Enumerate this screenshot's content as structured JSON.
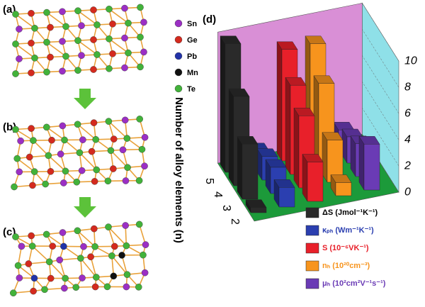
{
  "panels": {
    "a": "(a)",
    "b": "(b)",
    "c": "(c)",
    "d": "(d)"
  },
  "atom_legend": [
    "Sn",
    "Ge",
    "Pb",
    "Mn",
    "Te"
  ],
  "chart_data": {
    "type": "bar3d",
    "ylabel": "Number of alloy elements (n)",
    "categories": [
      2,
      3,
      4,
      5
    ],
    "zlim": [
      0,
      10
    ],
    "zticks": [
      0,
      2,
      4,
      6,
      8,
      10
    ],
    "series": [
      {
        "name": "ΔS (Jmol⁻¹K⁻¹)",
        "color": "#2a2a2a",
        "values": [
          0.4,
          4.2,
          6.8,
          9.8
        ]
      },
      {
        "name": "κₚₕ (Wm⁻¹K⁻¹)",
        "color": "#2b3fb0",
        "values": [
          1.5,
          2.0,
          1.8,
          1.2
        ]
      },
      {
        "name": "S (10⁻⁶VK⁻¹)",
        "color": "#e8202a",
        "values": [
          3.0,
          5.5,
          6.8,
          8.5
        ]
      },
      {
        "name": "nₕ (10²⁰cm⁻³)",
        "color": "#f7941d",
        "values": [
          1.0,
          3.2,
          6.5,
          8.5
        ]
      },
      {
        "name": "μₕ (10²cm²V⁻¹s⁻¹)",
        "color": "#6a3bb5",
        "values": [
          3.5,
          2.5,
          2.0,
          1.5
        ]
      }
    ]
  }
}
